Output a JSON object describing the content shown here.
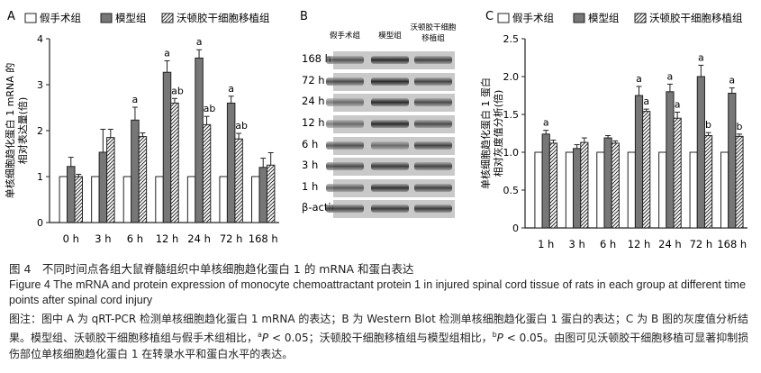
{
  "legend": {
    "sham": "假手术组",
    "model": "模型组",
    "transplant": "沃顿胶干细胞移植组"
  },
  "colors": {
    "sham": "#ffffff",
    "model": "#777777",
    "transplant_hatch": "#333333"
  },
  "panels": {
    "A": {
      "letter": "A",
      "ylabel_line1": "单核细胞趋化蛋白 1 mRNA 的",
      "ylabel_line2": "相对表达量(倍)"
    },
    "B": {
      "letter": "B",
      "lane_labels": [
        "假手术组",
        "模型组",
        "沃顿胶干细胞\n移植组"
      ],
      "row_labels": [
        "168 h",
        "72 h",
        "24 h",
        "12 h",
        "6 h",
        "3 h",
        "1 h",
        "β-actin"
      ]
    },
    "C": {
      "letter": "C",
      "ylabel_line1": "单核细胞趋化蛋白 1 蛋白",
      "ylabel_line2": "相对灰度值分析(倍)"
    }
  },
  "chart_data": [
    {
      "panel": "A",
      "type": "bar",
      "categories": [
        "0 h",
        "3 h",
        "6 h",
        "12 h",
        "24 h",
        "72 h",
        "168 h"
      ],
      "ylabel": "单核细胞趋化蛋白 1 mRNA 的相对表达量(倍)",
      "ylim": [
        0,
        4
      ],
      "yticks": [
        0,
        1,
        2,
        3,
        4
      ],
      "series": [
        {
          "name": "假手术组",
          "values": [
            1.0,
            1.0,
            1.0,
            1.0,
            1.0,
            1.0,
            1.0
          ],
          "errors": [
            0,
            0,
            0,
            0,
            0,
            0,
            0
          ]
        },
        {
          "name": "模型组",
          "values": [
            1.22,
            1.53,
            2.23,
            3.27,
            3.58,
            2.6,
            1.2
          ],
          "errors": [
            0.2,
            0.5,
            0.28,
            0.25,
            0.18,
            0.15,
            0.2
          ]
        },
        {
          "name": "沃顿胶干细胞移植组",
          "values": [
            1.0,
            1.85,
            1.87,
            2.6,
            2.13,
            1.82,
            1.25
          ],
          "errors": [
            0.05,
            0.18,
            0.08,
            0.1,
            0.18,
            0.12,
            0.27
          ]
        }
      ],
      "annotations": [
        {
          "series": 1,
          "index": 2,
          "text": "a"
        },
        {
          "series": 1,
          "index": 3,
          "text": "a"
        },
        {
          "series": 1,
          "index": 4,
          "text": "a"
        },
        {
          "series": 1,
          "index": 5,
          "text": "a"
        },
        {
          "series": 2,
          "index": 3,
          "text": "ab"
        },
        {
          "series": 2,
          "index": 4,
          "text": "ab"
        },
        {
          "series": 2,
          "index": 5,
          "text": "ab"
        }
      ]
    },
    {
      "panel": "C",
      "type": "bar",
      "categories": [
        "1 h",
        "3 h",
        "6 h",
        "12 h",
        "24 h",
        "72 h",
        "168 h"
      ],
      "ylabel": "单核细胞趋化蛋白 1 蛋白相对灰度值分析(倍)",
      "ylim": [
        0,
        2.5
      ],
      "yticks": [
        0,
        0.5,
        1.0,
        1.5,
        2.0,
        2.5
      ],
      "yticklabels": [
        "0",
        "0.5",
        "1.0",
        "1.5",
        "2.0",
        "2.5"
      ],
      "series": [
        {
          "name": "假手术组",
          "values": [
            1.0,
            1.0,
            1.0,
            1.0,
            1.0,
            1.0,
            1.0
          ],
          "errors": [
            0,
            0,
            0,
            0,
            0,
            0,
            0
          ]
        },
        {
          "name": "模型组",
          "values": [
            1.24,
            1.05,
            1.19,
            1.75,
            1.8,
            2.0,
            1.78
          ],
          "errors": [
            0.05,
            0.05,
            0.03,
            0.12,
            0.1,
            0.15,
            0.07
          ]
        },
        {
          "name": "沃顿胶干细胞移植组",
          "values": [
            1.12,
            1.13,
            1.12,
            1.54,
            1.45,
            1.22,
            1.21
          ],
          "errors": [
            0.04,
            0.06,
            0.03,
            0.03,
            0.08,
            0.04,
            0.03
          ]
        }
      ],
      "annotations": [
        {
          "series": 1,
          "index": 0,
          "text": "a"
        },
        {
          "series": 1,
          "index": 3,
          "text": "a"
        },
        {
          "series": 1,
          "index": 4,
          "text": "a"
        },
        {
          "series": 1,
          "index": 5,
          "text": "a"
        },
        {
          "series": 1,
          "index": 6,
          "text": "a"
        },
        {
          "series": 2,
          "index": 3,
          "text": "a"
        },
        {
          "series": 2,
          "index": 4,
          "text": "a"
        },
        {
          "series": 2,
          "index": 5,
          "text": "b"
        },
        {
          "series": 2,
          "index": 6,
          "text": "b"
        }
      ]
    }
  ],
  "caption": {
    "title_cn": "图 4　不同时间点各组大鼠脊髓组织中单核细胞趋化蛋白 1 的 mRNA 和蛋白表达",
    "title_en": "Figure 4   The mRNA and protein expression of monocyte chemoattractant protein 1 in injured spinal cord tissue of rats in each group at different time points after spinal cord injury",
    "note_1": "图注：图中 A 为 qRT-PCR 检测单核细胞趋化蛋白 1 mRNA 的表达；B 为 Western Blot 检测单核细胞趋化蛋白 1 蛋白的表达；C 为 B 图的灰度值分析结果。模型组、沃顿胶干细胞移植组与假手术组相比，",
    "sup_a": "a",
    "p_letter": "P",
    "p_value": " < 0.05；沃顿胶干细胞移植组与模型组相比，",
    "sup_b": "b",
    "note_2": " < 0.05。由图可见沃顿胶干细胞移植可显著抑制损伤部位单核细胞趋化蛋白 1 在转录水平和蛋白水平的表达。"
  }
}
